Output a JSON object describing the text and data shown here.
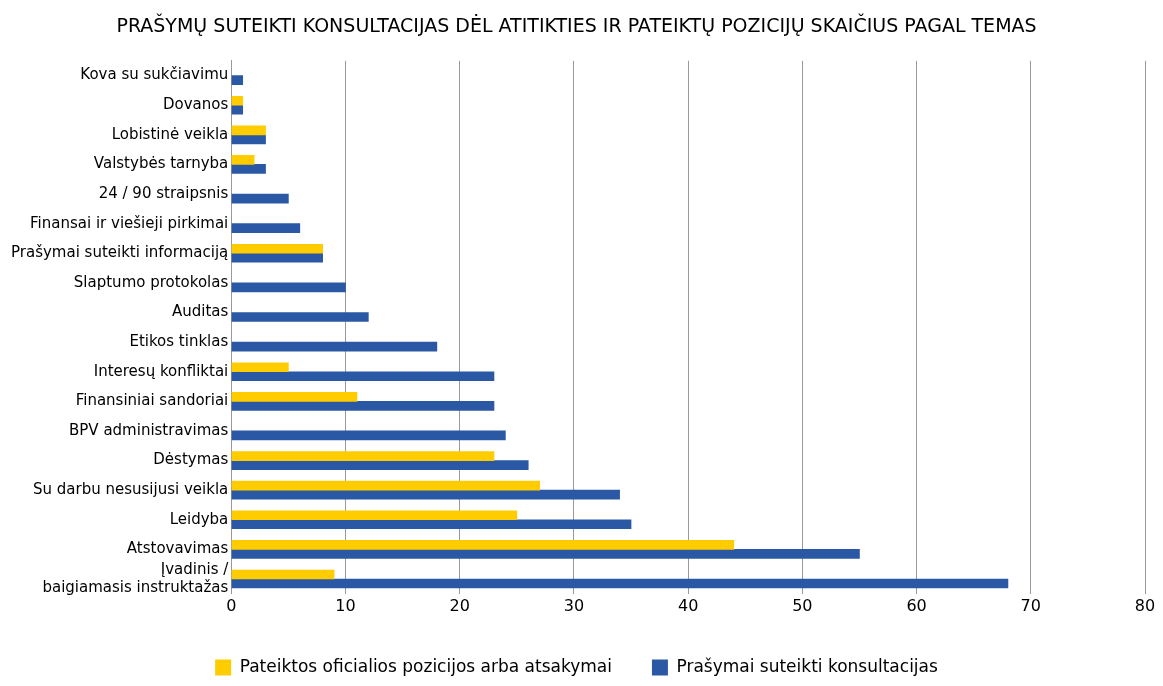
{
  "chart_data": {
    "type": "bar",
    "orientation": "horizontal",
    "title": "PRAŠYMŲ SUTEIKTI KONSULTACIJAS DĖL ATITIKTIES IR PATEIKTŲ POZICIJŲ SKAIČIUS PAGAL TEMAS",
    "categories": [
      "Kova su sukčiavimu",
      "Dovanos",
      "Lobistinė veikla",
      "Valstybės tarnyba",
      "24 / 90 straipsnis",
      "Finansai ir viešieji pirkimai",
      "Prašymai suteikti informaciją",
      "Slaptumo protokolas",
      "Auditas",
      "Etikos tinklas",
      "Interesų konfliktai",
      "Finansiniai sandoriai",
      "BPV administravimas",
      "Dėstymas",
      "Su darbu nesusijusi veikla",
      "Leidyba",
      "Atstovavimas",
      "Įvadinis /\nbaigiamasis instruktažas"
    ],
    "series": [
      {
        "name": "Pateiktos oficialios pozicijos arba atsakymai",
        "color": "#ffcc00",
        "values": [
          null,
          1,
          3,
          2,
          null,
          null,
          8,
          null,
          null,
          null,
          5,
          11,
          null,
          23,
          27,
          25,
          44,
          9
        ]
      },
      {
        "name": "Prašymai suteikti konsultacijas",
        "color": "#2b58a5",
        "values": [
          1,
          1,
          3,
          3,
          5,
          6,
          8,
          10,
          12,
          18,
          23,
          23,
          24,
          26,
          34,
          35,
          55,
          68
        ]
      }
    ],
    "xlim": [
      0,
      80
    ],
    "xticks": [
      0,
      10,
      20,
      30,
      40,
      50,
      60,
      70,
      80
    ],
    "grid": "x",
    "legend": "bottom"
  }
}
